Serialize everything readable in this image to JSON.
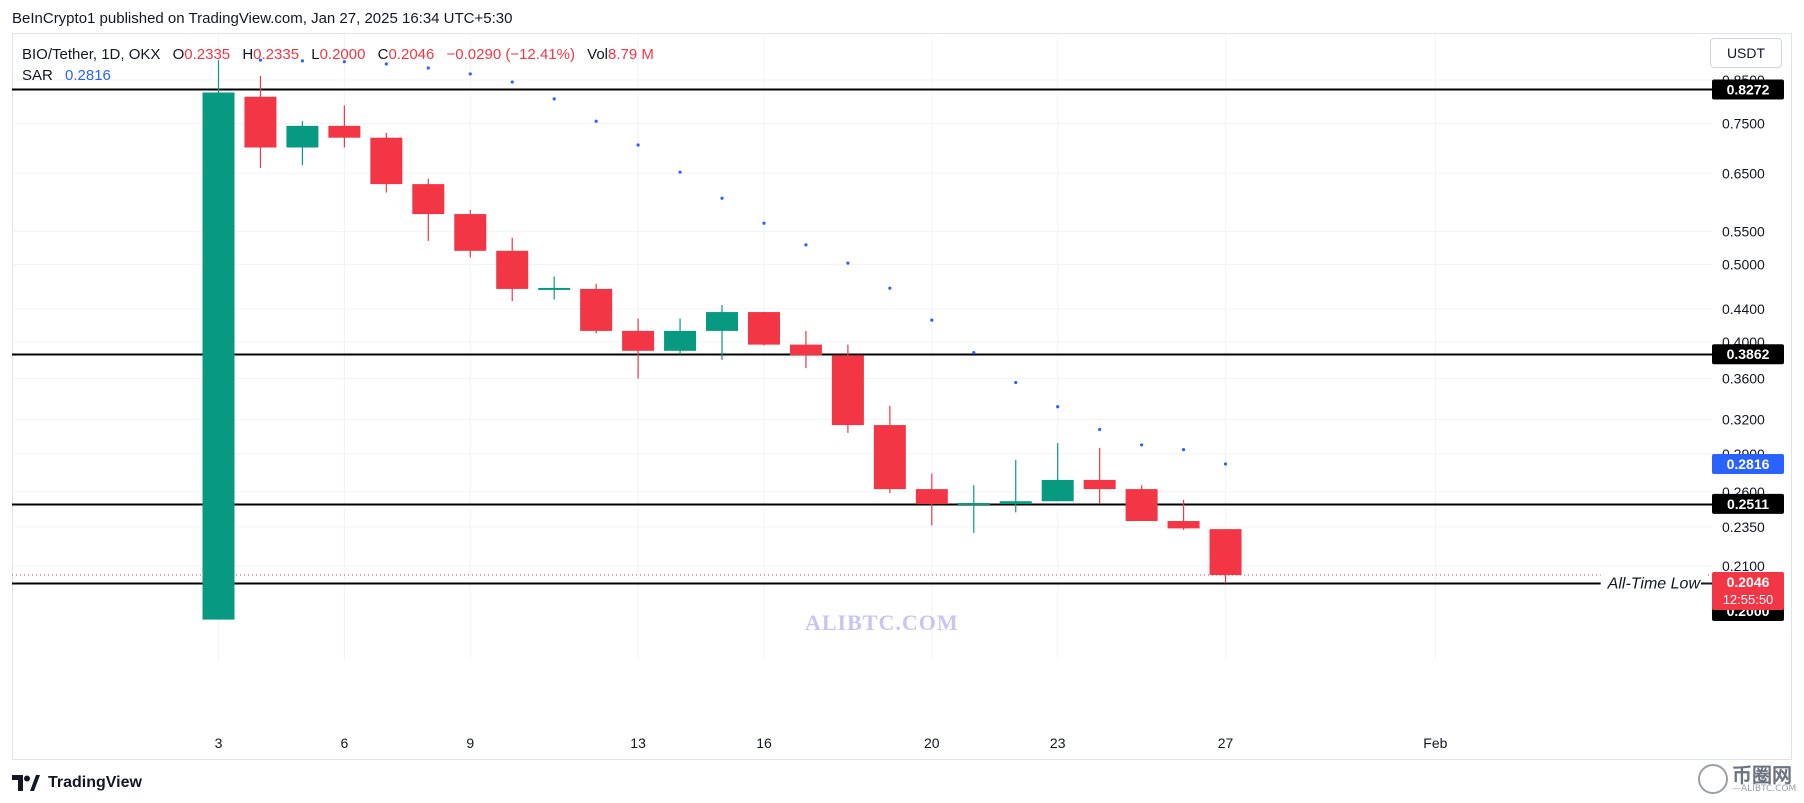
{
  "header": {
    "publisher_line": "BeInCrypto1 published on TradingView.com, Jan 27, 2025 16:34 UTC+5:30"
  },
  "legend": {
    "symbol": "BIO/Tether, 1D, OKX",
    "o_label": "O",
    "o_value": "0.2335",
    "h_label": "H",
    "h_value": "0.2335",
    "l_label": "L",
    "l_value": "0.2000",
    "c_label": "C",
    "c_value": "0.2046",
    "change": "−0.0290 (−12.41%)",
    "vol_label": "Vol",
    "vol_value": "8.79 M",
    "sar_label": "SAR",
    "sar_value": "0.2816"
  },
  "currency_button": "USDT",
  "footer": {
    "brand": "TradingView"
  },
  "watermark": {
    "text": "ALIBTC.COM",
    "logo_zh": "币圈网",
    "logo_en": "—ALIBTC.COM"
  },
  "colors": {
    "up": "#089981",
    "down": "#f23645",
    "sar": "#2962ff",
    "grid": "#f0f3fa",
    "level_line": "#000000",
    "label_dark": "#000000",
    "last_price": "#f23645",
    "sar_label": "#2962ff"
  },
  "chart_data": {
    "type": "candlestick",
    "symbol": "BIO/Tether",
    "interval": "1D",
    "exchange": "OKX",
    "y_scale": "log",
    "ylim": [
      0.185,
      0.93
    ],
    "y_ticks": [
      "0.8500",
      "0.7500",
      "0.6500",
      "0.5500",
      "0.5000",
      "0.4400",
      "0.4000",
      "0.3600",
      "0.3200",
      "0.2900",
      "0.2600",
      "0.2350",
      "0.2100"
    ],
    "x_ticks": [
      "3",
      "6",
      "9",
      "13",
      "16",
      "20",
      "23",
      "27",
      "Feb"
    ],
    "candles": [
      {
        "date": "Jan 3",
        "open": 0.18,
        "high": 0.9,
        "low": 0.18,
        "close": 0.82
      },
      {
        "date": "Jan 4",
        "open": 0.81,
        "high": 0.86,
        "low": 0.66,
        "close": 0.7
      },
      {
        "date": "Jan 5",
        "open": 0.7,
        "high": 0.755,
        "low": 0.665,
        "close": 0.745
      },
      {
        "date": "Jan 6",
        "open": 0.745,
        "high": 0.79,
        "low": 0.7,
        "close": 0.72
      },
      {
        "date": "Jan 7",
        "open": 0.72,
        "high": 0.73,
        "low": 0.615,
        "close": 0.63
      },
      {
        "date": "Jan 8",
        "open": 0.63,
        "high": 0.64,
        "low": 0.535,
        "close": 0.578
      },
      {
        "date": "Jan 9",
        "open": 0.578,
        "high": 0.585,
        "low": 0.51,
        "close": 0.52
      },
      {
        "date": "Jan 10",
        "open": 0.52,
        "high": 0.54,
        "low": 0.45,
        "close": 0.466
      },
      {
        "date": "Jan 11",
        "open": 0.466,
        "high": 0.483,
        "low": 0.452,
        "close": 0.466
      },
      {
        "date": "Jan 12",
        "open": 0.466,
        "high": 0.473,
        "low": 0.41,
        "close": 0.413
      },
      {
        "date": "Jan 13",
        "open": 0.413,
        "high": 0.428,
        "low": 0.36,
        "close": 0.39
      },
      {
        "date": "Jan 14",
        "open": 0.39,
        "high": 0.428,
        "low": 0.386,
        "close": 0.413
      },
      {
        "date": "Jan 15",
        "open": 0.413,
        "high": 0.445,
        "low": 0.38,
        "close": 0.436
      },
      {
        "date": "Jan 16",
        "open": 0.436,
        "high": 0.436,
        "low": 0.396,
        "close": 0.397
      },
      {
        "date": "Jan 17",
        "open": 0.397,
        "high": 0.413,
        "low": 0.371,
        "close": 0.385
      },
      {
        "date": "Jan 18",
        "open": 0.385,
        "high": 0.397,
        "low": 0.308,
        "close": 0.315
      },
      {
        "date": "Jan 19",
        "open": 0.315,
        "high": 0.333,
        "low": 0.259,
        "close": 0.262
      },
      {
        "date": "Jan 20",
        "open": 0.262,
        "high": 0.274,
        "low": 0.236,
        "close": 0.251
      },
      {
        "date": "Jan 21",
        "open": 0.251,
        "high": 0.265,
        "low": 0.231,
        "close": 0.251
      },
      {
        "date": "Jan 22",
        "open": 0.251,
        "high": 0.285,
        "low": 0.245,
        "close": 0.253
      },
      {
        "date": "Jan 23",
        "open": 0.253,
        "high": 0.299,
        "low": 0.253,
        "close": 0.269
      },
      {
        "date": "Jan 24",
        "open": 0.269,
        "high": 0.295,
        "low": 0.251,
        "close": 0.262
      },
      {
        "date": "Jan 25",
        "open": 0.262,
        "high": 0.265,
        "low": 0.239,
        "close": 0.239
      },
      {
        "date": "Jan 26",
        "open": 0.239,
        "high": 0.254,
        "low": 0.233,
        "close": 0.234
      },
      {
        "date": "Jan 27",
        "open": 0.2335,
        "high": 0.2335,
        "low": 0.2,
        "close": 0.2046
      }
    ],
    "sar": [
      {
        "date": "Jan 4",
        "value": 0.9
      },
      {
        "date": "Jan 5",
        "value": 0.898
      },
      {
        "date": "Jan 6",
        "value": 0.896
      },
      {
        "date": "Jan 7",
        "value": 0.89
      },
      {
        "date": "Jan 8",
        "value": 0.88
      },
      {
        "date": "Jan 9",
        "value": 0.865
      },
      {
        "date": "Jan 10",
        "value": 0.845
      },
      {
        "date": "Jan 11",
        "value": 0.805
      },
      {
        "date": "Jan 12",
        "value": 0.755
      },
      {
        "date": "Jan 13",
        "value": 0.705
      },
      {
        "date": "Jan 14",
        "value": 0.652
      },
      {
        "date": "Jan 15",
        "value": 0.605
      },
      {
        "date": "Jan 16",
        "value": 0.563
      },
      {
        "date": "Jan 17",
        "value": 0.529
      },
      {
        "date": "Jan 18",
        "value": 0.502
      },
      {
        "date": "Jan 19",
        "value": 0.467
      },
      {
        "date": "Jan 20",
        "value": 0.426
      },
      {
        "date": "Jan 21",
        "value": 0.388
      },
      {
        "date": "Jan 22",
        "value": 0.356
      },
      {
        "date": "Jan 23",
        "value": 0.332
      },
      {
        "date": "Jan 24",
        "value": 0.311
      },
      {
        "date": "Jan 25",
        "value": 0.2975
      },
      {
        "date": "Jan 26",
        "value": 0.2935
      },
      {
        "date": "Jan 27",
        "value": 0.2816
      }
    ],
    "horizontal_levels": [
      {
        "value": 0.8272,
        "label": "0.8272"
      },
      {
        "value": 0.3862,
        "label": "0.3862"
      },
      {
        "value": 0.2511,
        "label": "0.2511"
      },
      {
        "value": 0.2,
        "label": "0.2000"
      }
    ],
    "annotations": [
      {
        "text": "All-Time Low",
        "at_value": 0.2
      }
    ],
    "last_price": {
      "value": 0.2046,
      "label": "0.2046",
      "countdown": "12:55:50"
    },
    "sar_current": {
      "value": 0.2816,
      "label": "0.2816"
    }
  }
}
